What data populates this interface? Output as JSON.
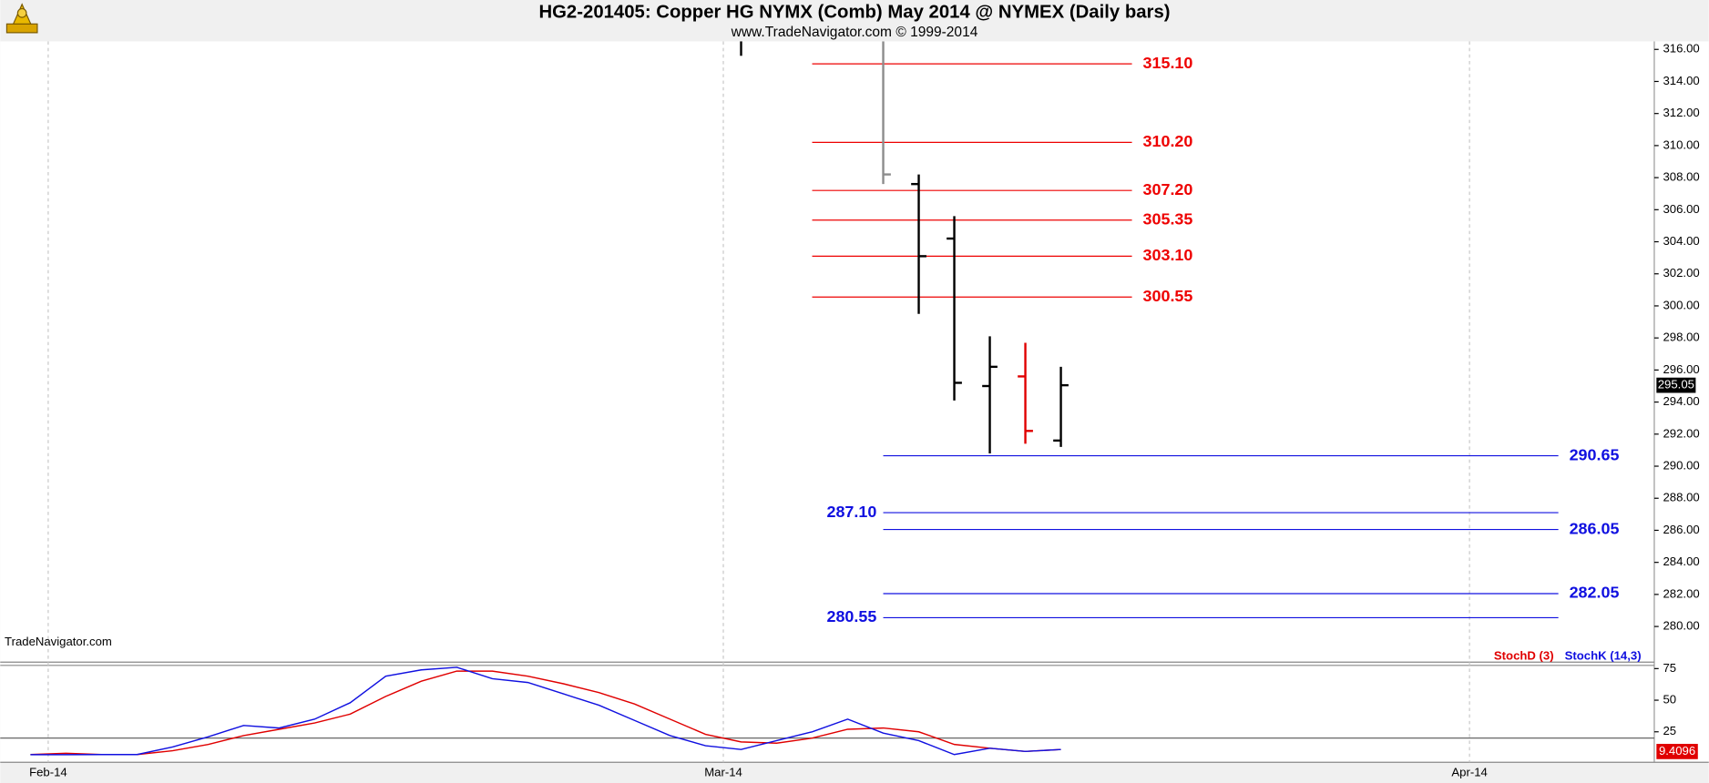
{
  "chart_data": [
    {
      "type": "ohlc",
      "title": "HG2-201405:  Copper HG NYMX (Comb) May 2014 @ NYMEX  (Daily bars)",
      "subtitle": "www.TradeNavigator.com © 1999-2014",
      "watermark": "TradeNavigator.com",
      "x": [
        19.5,
        23.5,
        24.5,
        25.5,
        26.5,
        27.5,
        28.5
      ],
      "open": [
        null,
        null,
        307.6,
        304.2,
        295.0,
        295.6,
        291.6
      ],
      "high": [
        316.5,
        316.5,
        308.2,
        305.6,
        298.1,
        297.7,
        296.2
      ],
      "low": [
        315.6,
        307.6,
        299.5,
        294.1,
        290.8,
        291.4,
        291.2
      ],
      "close": [
        null,
        308.2,
        303.1,
        295.2,
        296.2,
        292.2,
        295.05
      ],
      "colors": [
        "#000000",
        "#8c8c8c",
        "#000000",
        "#000000",
        "#000000",
        "#e00000",
        "#000000"
      ],
      "xlim": [
        -1.35,
        45.2
      ],
      "xticks": [
        {
          "value": 0,
          "label": "Feb-14"
        },
        {
          "value": 19,
          "label": "Mar-14"
        },
        {
          "value": 40,
          "label": "Apr-14"
        }
      ],
      "ylim": [
        279,
        316.5
      ],
      "yticks": [
        {
          "value": 280,
          "label": "280.00"
        },
        {
          "value": 282,
          "label": "282.00"
        },
        {
          "value": 284,
          "label": "284.00"
        },
        {
          "value": 286,
          "label": "286.00"
        },
        {
          "value": 288,
          "label": "288.00"
        },
        {
          "value": 290,
          "label": "290.00"
        },
        {
          "value": 292,
          "label": "292.00"
        },
        {
          "value": 294,
          "label": "294.00"
        },
        {
          "value": 296,
          "label": "296.00"
        },
        {
          "value": 298,
          "label": "298.00"
        },
        {
          "value": 300,
          "label": "300.00"
        },
        {
          "value": 302,
          "label": "302.00"
        },
        {
          "value": 304,
          "label": "304.00"
        },
        {
          "value": 306,
          "label": "306.00"
        },
        {
          "value": 308,
          "label": "308.00"
        },
        {
          "value": 310,
          "label": "310.00"
        },
        {
          "value": 312,
          "label": "312.00"
        },
        {
          "value": 314,
          "label": "314.00"
        },
        {
          "value": 316,
          "label": "316.00"
        }
      ],
      "last_price": 295.05,
      "resistance_levels": {
        "color": "#ee0000",
        "levels": [
          {
            "value": 315.1,
            "label": "315.10"
          },
          {
            "value": 310.2,
            "label": "310.20"
          },
          {
            "value": 307.2,
            "label": "307.20"
          },
          {
            "value": 305.35,
            "label": "305.35"
          },
          {
            "value": 303.1,
            "label": "303.10"
          },
          {
            "value": 300.55,
            "label": "300.55"
          }
        ]
      },
      "support_levels": {
        "color": "#1010e0",
        "levels": [
          {
            "value": 290.65,
            "label": "290.65",
            "label_side": "right"
          },
          {
            "value": 287.1,
            "label": "287.10",
            "label_side": "left"
          },
          {
            "value": 286.05,
            "label": "286.05",
            "label_side": "right"
          },
          {
            "value": 282.05,
            "label": "282.05",
            "label_side": "right"
          },
          {
            "value": 280.55,
            "label": "280.55",
            "label_side": "left"
          }
        ]
      }
    },
    {
      "type": "line",
      "x": [
        -0.5,
        0.5,
        1.5,
        2.5,
        3.5,
        4.5,
        5.5,
        6.5,
        7.5,
        8.5,
        9.5,
        10.5,
        11.5,
        12.5,
        13.5,
        14.5,
        15.5,
        16.5,
        17.5,
        18.5,
        19.5,
        20.5,
        21.5,
        22.5,
        23.5,
        24.5,
        25.5,
        26.5,
        27.5,
        28.5
      ],
      "xlim": [
        -1.35,
        45.2
      ],
      "series": [
        {
          "name": "StochD (3)",
          "color": "#e00000",
          "values": [
            7,
            8,
            7,
            7,
            10,
            15,
            22,
            27,
            32,
            39,
            53,
            65,
            73,
            73,
            69,
            63,
            56,
            47,
            35,
            23,
            17,
            16,
            20,
            27,
            28,
            25,
            15,
            12,
            9.5,
            11
          ]
        },
        {
          "name": "StochK (14,3)",
          "color": "#1010e0",
          "values": [
            6.9,
            6.9,
            7,
            7,
            13,
            21,
            30,
            28,
            35,
            48,
            69,
            74,
            76,
            67,
            64,
            55,
            46,
            34,
            22,
            14,
            11,
            18,
            25,
            35,
            24,
            18,
            7,
            12,
            9.5,
            11
          ]
        }
      ],
      "ylim": [
        0,
        78.4
      ],
      "yticks": [
        25,
        50,
        75
      ],
      "reference_line": 20,
      "last_value": 9.4096
    }
  ]
}
